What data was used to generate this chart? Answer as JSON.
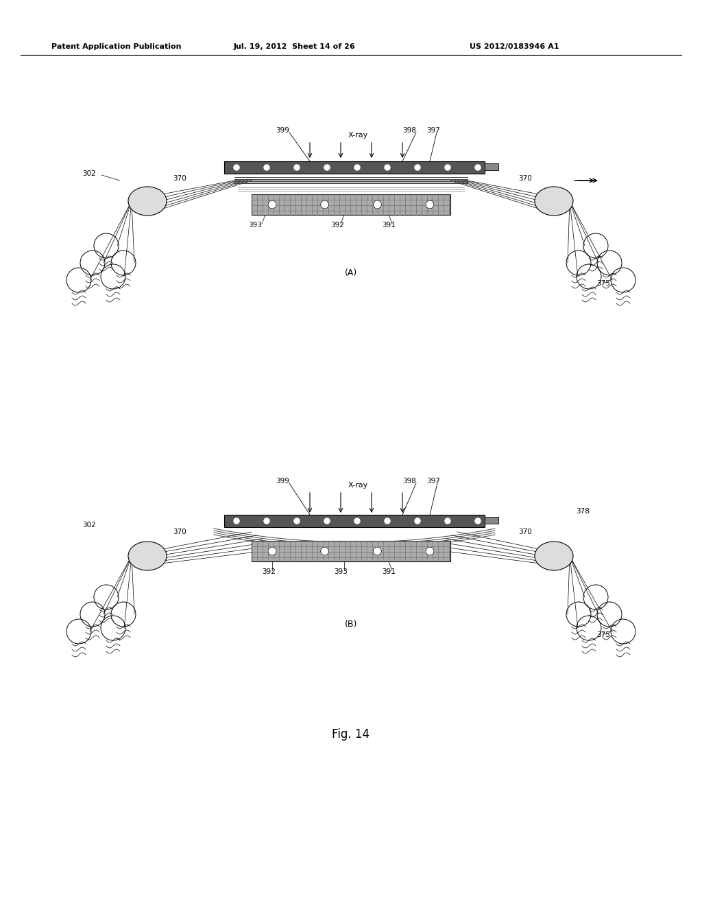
{
  "title": "Fig. 14",
  "header_left": "Patent Application Publication",
  "header_mid": "Jul. 19, 2012  Sheet 14 of 26",
  "header_right": "US 2012/0183946 A1",
  "background_color": "#ffffff",
  "line_color": "#000000",
  "gray_dark": "#444444",
  "gray_med": "#888888",
  "gray_light": "#cccccc",
  "gray_hatch": "#999999"
}
